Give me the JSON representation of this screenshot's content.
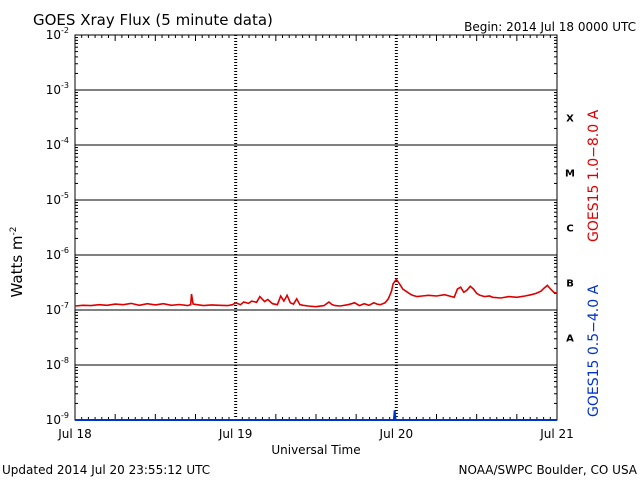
{
  "chart_data": {
    "type": "line",
    "title": "GOES Xray Flux (5 minute data)",
    "begin_label": "Begin:  2014 Jul 18 0000 UTC",
    "xlabel": "Universal Time",
    "ylabel": "Watts m",
    "ylabel_exponent": "-2",
    "y_scale": "log",
    "ylim": [
      1e-09,
      0.01
    ],
    "y_ticks": [
      {
        "value": 0.01,
        "exp": "-2"
      },
      {
        "value": 0.001,
        "exp": "-3"
      },
      {
        "value": 0.0001,
        "exp": "-4"
      },
      {
        "value": 1e-05,
        "exp": "-5"
      },
      {
        "value": 1e-06,
        "exp": "-6"
      },
      {
        "value": 1e-07,
        "exp": "-7"
      },
      {
        "value": 1e-08,
        "exp": "-8"
      },
      {
        "value": 1e-09,
        "exp": "-9"
      }
    ],
    "y_tick_base": "10",
    "x_axis_unit": "days since 2014 Jul 18 0000 UTC",
    "xlim": [
      0,
      3
    ],
    "x_ticks": [
      {
        "value": 0,
        "label": "Jul 18"
      },
      {
        "value": 1,
        "label": "Jul 19"
      },
      {
        "value": 2,
        "label": "Jul 20"
      },
      {
        "value": 3,
        "label": "Jul 21"
      }
    ],
    "flare_classes": [
      {
        "label": "X",
        "low": 0.0001,
        "high": 0.001
      },
      {
        "label": "M",
        "low": 1e-05,
        "high": 0.0001
      },
      {
        "label": "C",
        "low": 1e-06,
        "high": 1e-05
      },
      {
        "label": "B",
        "low": 1e-07,
        "high": 1e-06
      },
      {
        "label": "A",
        "low": 1e-08,
        "high": 1e-07
      }
    ],
    "grid": true,
    "series": [
      {
        "name": "GOES15 1.0−8.0 A",
        "color": "#dd0000",
        "x": [
          0,
          0.05,
          0.1,
          0.15,
          0.2,
          0.25,
          0.3,
          0.35,
          0.4,
          0.45,
          0.5,
          0.55,
          0.6,
          0.65,
          0.7,
          0.72,
          0.725,
          0.735,
          0.76,
          0.8,
          0.85,
          0.9,
          0.95,
          0.98,
          1.0,
          1.03,
          1.05,
          1.08,
          1.1,
          1.13,
          1.15,
          1.18,
          1.2,
          1.23,
          1.26,
          1.28,
          1.3,
          1.32,
          1.34,
          1.36,
          1.38,
          1.4,
          1.42,
          1.45,
          1.5,
          1.55,
          1.58,
          1.6,
          1.62,
          1.65,
          1.7,
          1.74,
          1.77,
          1.8,
          1.83,
          1.86,
          1.88,
          1.9,
          1.93,
          1.95,
          1.97,
          1.98,
          2.0,
          2.02,
          2.04,
          2.06,
          2.08,
          2.1,
          2.13,
          2.16,
          2.2,
          2.25,
          2.3,
          2.33,
          2.36,
          2.38,
          2.4,
          2.42,
          2.44,
          2.46,
          2.48,
          2.5,
          2.52,
          2.55,
          2.58,
          2.6,
          2.65,
          2.7,
          2.75,
          2.8,
          2.84,
          2.87,
          2.9,
          2.92,
          2.94,
          2.96,
          2.98,
          3.0
        ],
        "values": [
          1.18e-07,
          1.22e-07,
          1.2e-07,
          1.25e-07,
          1.22e-07,
          1.28e-07,
          1.25e-07,
          1.32e-07,
          1.22e-07,
          1.3e-07,
          1.24e-07,
          1.3e-07,
          1.22e-07,
          1.26e-07,
          1.2e-07,
          1.25e-07,
          1.95e-07,
          1.28e-07,
          1.25e-07,
          1.2e-07,
          1.24e-07,
          1.22e-07,
          1.2e-07,
          1.25e-07,
          1.35e-07,
          1.25e-07,
          1.4e-07,
          1.32e-07,
          1.45e-07,
          1.38e-07,
          1.75e-07,
          1.42e-07,
          1.55e-07,
          1.3e-07,
          1.25e-07,
          1.8e-07,
          1.45e-07,
          1.85e-07,
          1.35e-07,
          1.28e-07,
          1.6e-07,
          1.25e-07,
          1.22e-07,
          1.18e-07,
          1.15e-07,
          1.2e-07,
          1.4e-07,
          1.25e-07,
          1.2e-07,
          1.18e-07,
          1.25e-07,
          1.35e-07,
          1.2e-07,
          1.3e-07,
          1.22e-07,
          1.35e-07,
          1.28e-07,
          1.25e-07,
          1.35e-07,
          1.6e-07,
          2.2e-07,
          3e-07,
          3.6e-07,
          3e-07,
          2.4e-07,
          2.2e-07,
          2e-07,
          1.85e-07,
          1.75e-07,
          1.8e-07,
          1.85e-07,
          1.8e-07,
          1.9e-07,
          1.8e-07,
          1.7e-07,
          2.4e-07,
          2.6e-07,
          2.1e-07,
          2.3e-07,
          2.7e-07,
          2.4e-07,
          2e-07,
          1.85e-07,
          1.75e-07,
          1.8e-07,
          1.7e-07,
          1.65e-07,
          1.75e-07,
          1.7e-07,
          1.8e-07,
          1.9e-07,
          2e-07,
          2.2e-07,
          2.5e-07,
          2.8e-07,
          2.4e-07,
          2.1e-07,
          2e-07
        ]
      },
      {
        "name": "GOES15 0.5−4.0 A",
        "color": "#0033cc",
        "x": [
          0,
          1.975,
          1.985,
          1.99,
          1.995,
          2.0,
          3.0
        ],
        "values": [
          1e-09,
          1e-09,
          1e-09,
          1.5e-09,
          1e-09,
          1e-09,
          1e-09
        ]
      }
    ],
    "footer_left": "Updated 2014 Jul 20 23:55:12 UTC",
    "footer_right": "NOAA/SWPC Boulder, CO USA"
  }
}
